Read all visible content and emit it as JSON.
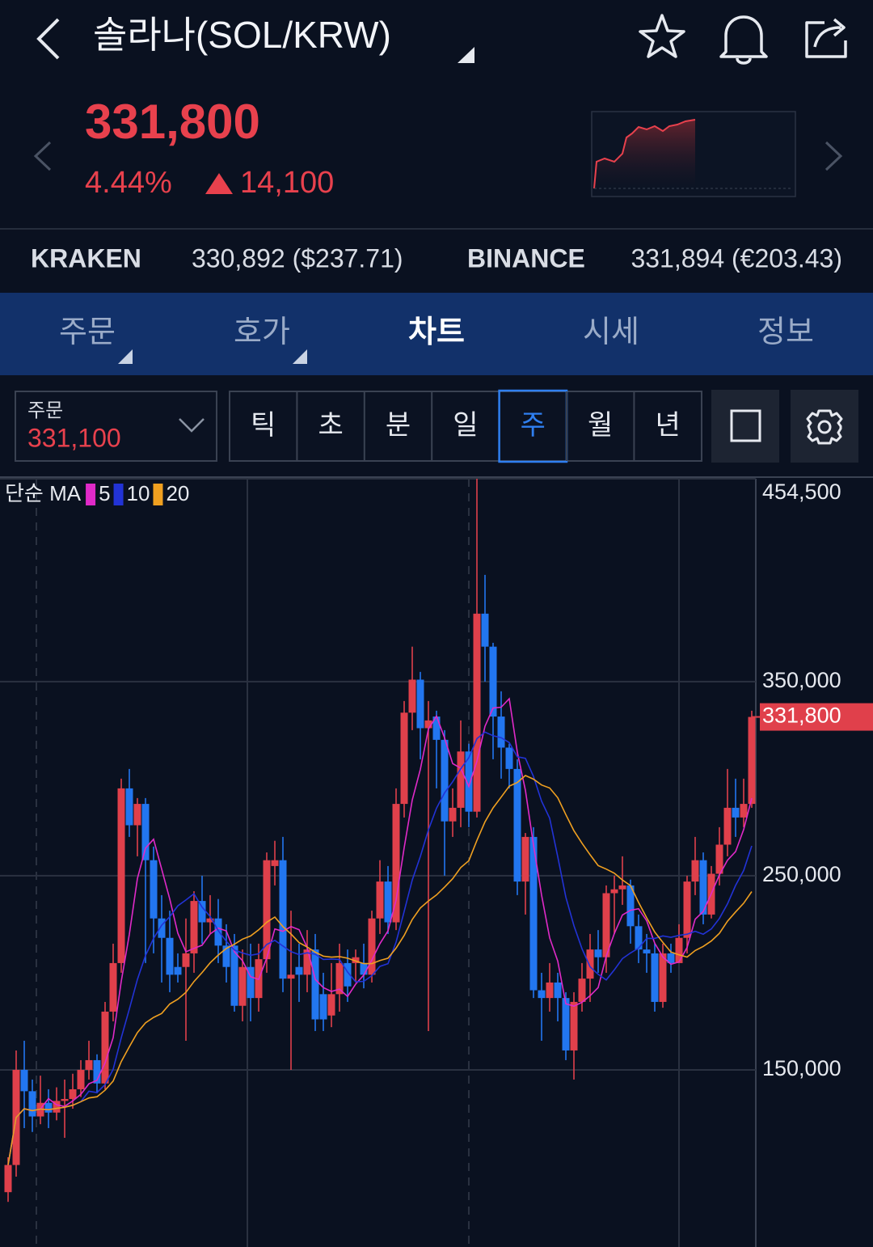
{
  "header": {
    "title": "솔라나(SOL/KRW)"
  },
  "quote": {
    "price": "331,800",
    "change_rate": "4.44%",
    "change": "14,100"
  },
  "exchanges": [
    {
      "name": "KRAKEN",
      "price": "330,892 ($237.71)"
    },
    {
      "name": "BINANCE",
      "price": "331,894 (€203.43)"
    }
  ],
  "tabs": [
    "주문",
    "호가",
    "차트",
    "시세",
    "정보"
  ],
  "order": {
    "label": "주문",
    "price": "331,100"
  },
  "periods": [
    "틱",
    "초",
    "분",
    "일",
    "주",
    "월",
    "년"
  ],
  "chart_data": {
    "type": "candlestick",
    "ma_label": "단순 MA",
    "ma": [
      {
        "name": "5",
        "color": "#e02ac8"
      },
      {
        "name": "10",
        "color": "#2233d6"
      },
      {
        "name": "20",
        "color": "#f0a020"
      }
    ],
    "up_color": "#e0404b",
    "down_color": "#2276f0",
    "ylim": [
      58750,
      454500
    ],
    "yticks": [
      {
        "value": 150000,
        "label": "150,000"
      },
      {
        "value": 250000,
        "label": "250,000"
      },
      {
        "value": 350000,
        "label": "350,000"
      },
      {
        "value": 454500,
        "label": "454,500"
      }
    ],
    "grid": true,
    "current_price": {
      "value": 331800,
      "label": "331,800"
    },
    "open": [
      87000,
      101000,
      150000,
      139000,
      126000,
      133000,
      128000,
      134000,
      135000,
      140000,
      150000,
      155000,
      143000,
      180000,
      205000,
      295000,
      276000,
      287000,
      258000,
      228000,
      218000,
      203000,
      203000,
      210000,
      237000,
      226000,
      228000,
      214000,
      214000,
      183000,
      203000,
      187000,
      207000,
      255000,
      258000,
      197000,
      203000,
      199000,
      212000,
      189000,
      178000,
      189000,
      205000,
      205000,
      205000,
      199000,
      228000,
      247000,
      226000,
      287000,
      334000,
      351000,
      326000,
      332000,
      320000,
      278000,
      285000,
      314000,
      283000,
      385000,
      368000,
      332000,
      316000,
      305000,
      247000,
      270000,
      191000,
      187000,
      195000,
      187000,
      160000,
      185000,
      197000,
      212000,
      208000,
      241000,
      243000,
      245000,
      224000,
      212000,
      210000,
      185000,
      210000,
      205000,
      218000,
      247000,
      258000,
      230000,
      251000,
      266000,
      285000,
      280000,
      287000
    ],
    "high": [
      105000,
      160000,
      165000,
      145000,
      147000,
      140000,
      141000,
      145000,
      148000,
      155000,
      165000,
      158000,
      185000,
      215000,
      300000,
      305000,
      290000,
      290000,
      265000,
      240000,
      232000,
      210000,
      228000,
      242000,
      250000,
      240000,
      238000,
      225000,
      220000,
      212000,
      215000,
      215000,
      262000,
      268000,
      270000,
      232000,
      215000,
      222000,
      220000,
      200000,
      205000,
      215000,
      212000,
      212000,
      215000,
      232000,
      258000,
      255000,
      295000,
      340000,
      368000,
      355000,
      340000,
      335000,
      325000,
      295000,
      330000,
      318000,
      454500,
      405000,
      370000,
      345000,
      318000,
      310000,
      272000,
      275000,
      200000,
      205000,
      200000,
      190000,
      190000,
      205000,
      220000,
      222000,
      245000,
      250000,
      260000,
      248000,
      230000,
      220000,
      215000,
      215000,
      215000,
      225000,
      250000,
      270000,
      262000,
      255000,
      275000,
      305000,
      300000,
      300000,
      335000
    ],
    "low": [
      82000,
      95000,
      120000,
      118000,
      122000,
      120000,
      124000,
      115000,
      130000,
      136000,
      145000,
      138000,
      140000,
      175000,
      200000,
      270000,
      260000,
      205000,
      210000,
      195000,
      190000,
      195000,
      165000,
      200000,
      215000,
      220000,
      205000,
      195000,
      180000,
      175000,
      175000,
      180000,
      200000,
      245000,
      190000,
      150000,
      185000,
      190000,
      170000,
      170000,
      172000,
      180000,
      185000,
      195000,
      192000,
      195000,
      220000,
      220000,
      222000,
      280000,
      325000,
      310000,
      170000,
      295000,
      250000,
      270000,
      275000,
      275000,
      280000,
      350000,
      310000,
      300000,
      295000,
      240000,
      230000,
      187000,
      165000,
      180000,
      175000,
      155000,
      145000,
      180000,
      185000,
      200000,
      200000,
      220000,
      235000,
      215000,
      205000,
      200000,
      180000,
      182000,
      200000,
      205000,
      210000,
      240000,
      225000,
      228000,
      245000,
      260000,
      270000,
      275000,
      285000
    ],
    "close": [
      101000,
      150000,
      139000,
      126000,
      133000,
      128000,
      134000,
      135000,
      140000,
      150000,
      155000,
      143000,
      180000,
      205000,
      295000,
      276000,
      287000,
      258000,
      228000,
      218000,
      199000,
      199000,
      210000,
      237000,
      226000,
      228000,
      214000,
      203000,
      183000,
      203000,
      187000,
      207000,
      258000,
      258000,
      197000,
      199000,
      199000,
      212000,
      176000,
      176000,
      189000,
      205000,
      193000,
      208000,
      199000,
      228000,
      247000,
      226000,
      287000,
      334000,
      351000,
      326000,
      330000,
      320000,
      278000,
      285000,
      314000,
      283000,
      385000,
      368000,
      332000,
      316000,
      305000,
      247000,
      270000,
      191000,
      187000,
      195000,
      187000,
      160000,
      185000,
      197000,
      212000,
      208000,
      241000,
      243000,
      245000,
      224000,
      212000,
      210000,
      185000,
      210000,
      205000,
      218000,
      247000,
      258000,
      230000,
      251000,
      266000,
      285000,
      280000,
      287000,
      331800
    ]
  }
}
